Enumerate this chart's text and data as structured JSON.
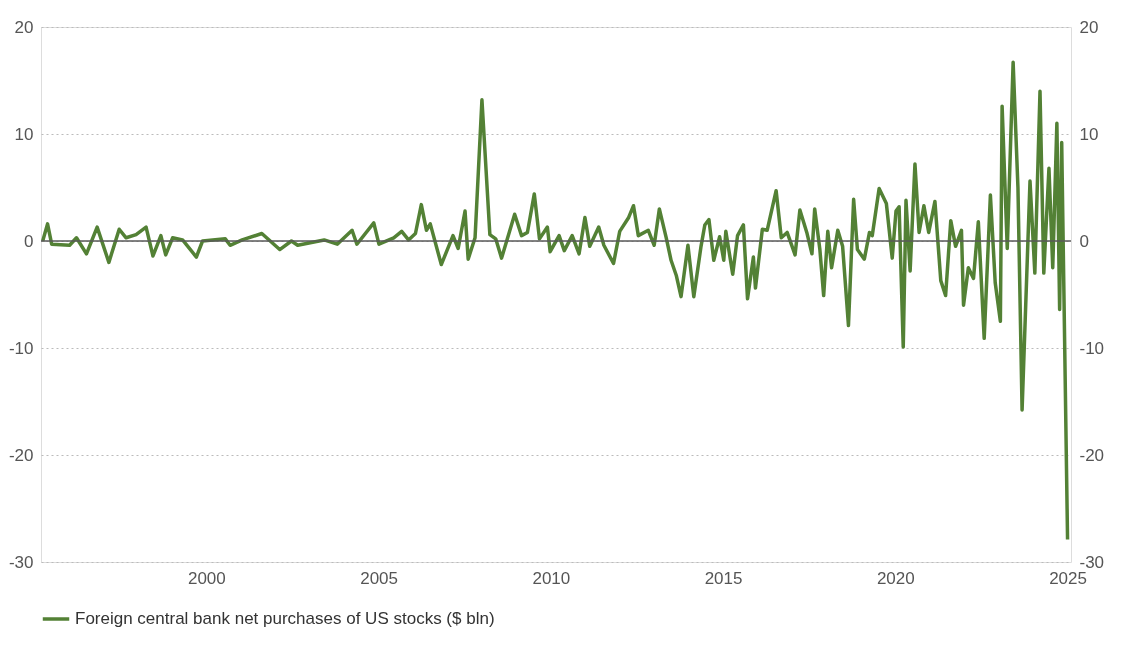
{
  "chart_data": {
    "type": "line",
    "x": [
      1995.25,
      1995.39,
      1995.51,
      1996.03,
      1996.23,
      1996.52,
      1996.83,
      1997.17,
      1997.47,
      1997.67,
      1997.96,
      1998.25,
      1998.45,
      1998.68,
      1998.82,
      1999.02,
      1999.31,
      1999.71,
      1999.89,
      2000.55,
      2000.69,
      2001.04,
      2001.61,
      2002.13,
      2002.47,
      2002.65,
      2003.42,
      2003.8,
      2004.23,
      2004.37,
      2004.86,
      2005.01,
      2005.44,
      2005.67,
      2005.87,
      2006.07,
      2006.24,
      2006.39,
      2006.5,
      2006.82,
      2007.16,
      2007.31,
      2007.51,
      2007.6,
      2007.8,
      2008.0,
      2008.23,
      2008.4,
      2008.57,
      2008.95,
      2009.15,
      2009.32,
      2009.52,
      2009.67,
      2009.9,
      2009.98,
      2010.24,
      2010.39,
      2010.62,
      2010.82,
      2010.99,
      2011.13,
      2011.39,
      2011.54,
      2011.82,
      2012.0,
      2012.26,
      2012.4,
      2012.54,
      2012.83,
      2013.0,
      2013.15,
      2013.35,
      2013.49,
      2013.64,
      2013.78,
      2013.98,
      2014.15,
      2014.36,
      2014.47,
      2014.59,
      2014.73,
      2014.9,
      2015.02,
      2015.08,
      2015.28,
      2015.42,
      2015.59,
      2015.71,
      2015.88,
      2015.94,
      2016.14,
      2016.28,
      2016.54,
      2016.69,
      2016.86,
      2017.09,
      2017.23,
      2017.43,
      2017.58,
      2017.66,
      2017.81,
      2017.92,
      2018.04,
      2018.15,
      2018.33,
      2018.47,
      2018.64,
      2018.79,
      2018.9,
      2019.1,
      2019.25,
      2019.33,
      2019.53,
      2019.74,
      2019.91,
      2020.02,
      2020.11,
      2020.23,
      2020.31,
      2020.43,
      2020.57,
      2020.69,
      2020.83,
      2020.97,
      2021.15,
      2021.32,
      2021.46,
      2021.61,
      2021.75,
      2021.92,
      2021.98,
      2022.12,
      2022.27,
      2022.41,
      2022.58,
      2022.76,
      2022.9,
      2023.05,
      2023.1,
      2023.25,
      2023.42,
      2023.56,
      2023.68,
      2023.91,
      2024.05,
      2024.2,
      2024.31,
      2024.46,
      2024.57,
      2024.69,
      2024.77,
      2024.83,
      2025.0
    ],
    "series": [
      {
        "name": "Foreign central bank net purchases of US stocks ($ bln)",
        "color": "#538135",
        "values": [
          0,
          1.6,
          -0.3,
          -0.4,
          0.3,
          -1.2,
          1.3,
          -2.0,
          1.1,
          0.3,
          0.6,
          1.3,
          -1.4,
          0.5,
          -1.3,
          0.3,
          0.1,
          -1.5,
          0,
          0.2,
          -0.4,
          0.1,
          0.7,
          -0.8,
          0,
          -0.4,
          0.1,
          -0.3,
          1.0,
          -0.3,
          1.7,
          -0.3,
          0.3,
          0.9,
          0.1,
          0.7,
          3.4,
          1.0,
          1.6,
          -2.2,
          0.5,
          -0.7,
          2.8,
          -1.7,
          0.3,
          13.2,
          0.6,
          0.2,
          -1.6,
          2.5,
          0.5,
          0.8,
          4.4,
          0.2,
          1.3,
          -1.0,
          0.5,
          -0.9,
          0.5,
          -1.2,
          2.2,
          -0.5,
          1.3,
          -0.4,
          -2.1,
          0.9,
          2.2,
          3.3,
          0.5,
          1.0,
          -0.4,
          3.0,
          0.3,
          -1.8,
          -3.2,
          -5.2,
          -0.4,
          -5.2,
          -0.5,
          1.5,
          2.0,
          -1.8,
          0.4,
          -1.8,
          0.9,
          -3.1,
          0.5,
          1.5,
          -5.4,
          -1.5,
          -4.4,
          1.1,
          1.0,
          4.7,
          0.3,
          0.8,
          -1.3,
          2.9,
          0.8,
          -1.2,
          3.0,
          -0.8,
          -5.1,
          0.9,
          -2.5,
          1.0,
          -0.5,
          -7.9,
          3.9,
          -0.8,
          -1.7,
          0.8,
          0.5,
          4.9,
          3.5,
          -1.6,
          2.8,
          3.2,
          -9.9,
          3.8,
          -2.8,
          7.2,
          0.8,
          3.3,
          0.8,
          3.7,
          -3.7,
          -5.1,
          1.9,
          -0.5,
          1.0,
          -6.0,
          -2.5,
          -3.5,
          1.8,
          -9.1,
          4.3,
          -3.9,
          -7.5,
          12.6,
          -0.7,
          16.7,
          5.0,
          -15.8,
          5.6,
          -3.0,
          14.0,
          -3.0,
          6.8,
          -2.5,
          11.0,
          -6.4,
          9.2,
          -27.9
        ]
      }
    ],
    "xlim": [
      1995.2,
      2025.1
    ],
    "xticks": [
      2000,
      2005,
      2010,
      2015,
      2020,
      2025
    ],
    "ylim": [
      -30,
      20
    ],
    "yticks": [
      -30,
      -20,
      -10,
      0,
      10,
      20
    ],
    "y2lim": [
      -30,
      20
    ],
    "y2ticks": [
      -30,
      -20,
      -10,
      0,
      10,
      20
    ],
    "ref_lines": [
      {
        "axis": "y",
        "value": 0,
        "color": "#595959"
      }
    ],
    "grid": "y",
    "legend": "bottom left",
    "line_style": "solid",
    "marker": "none"
  }
}
